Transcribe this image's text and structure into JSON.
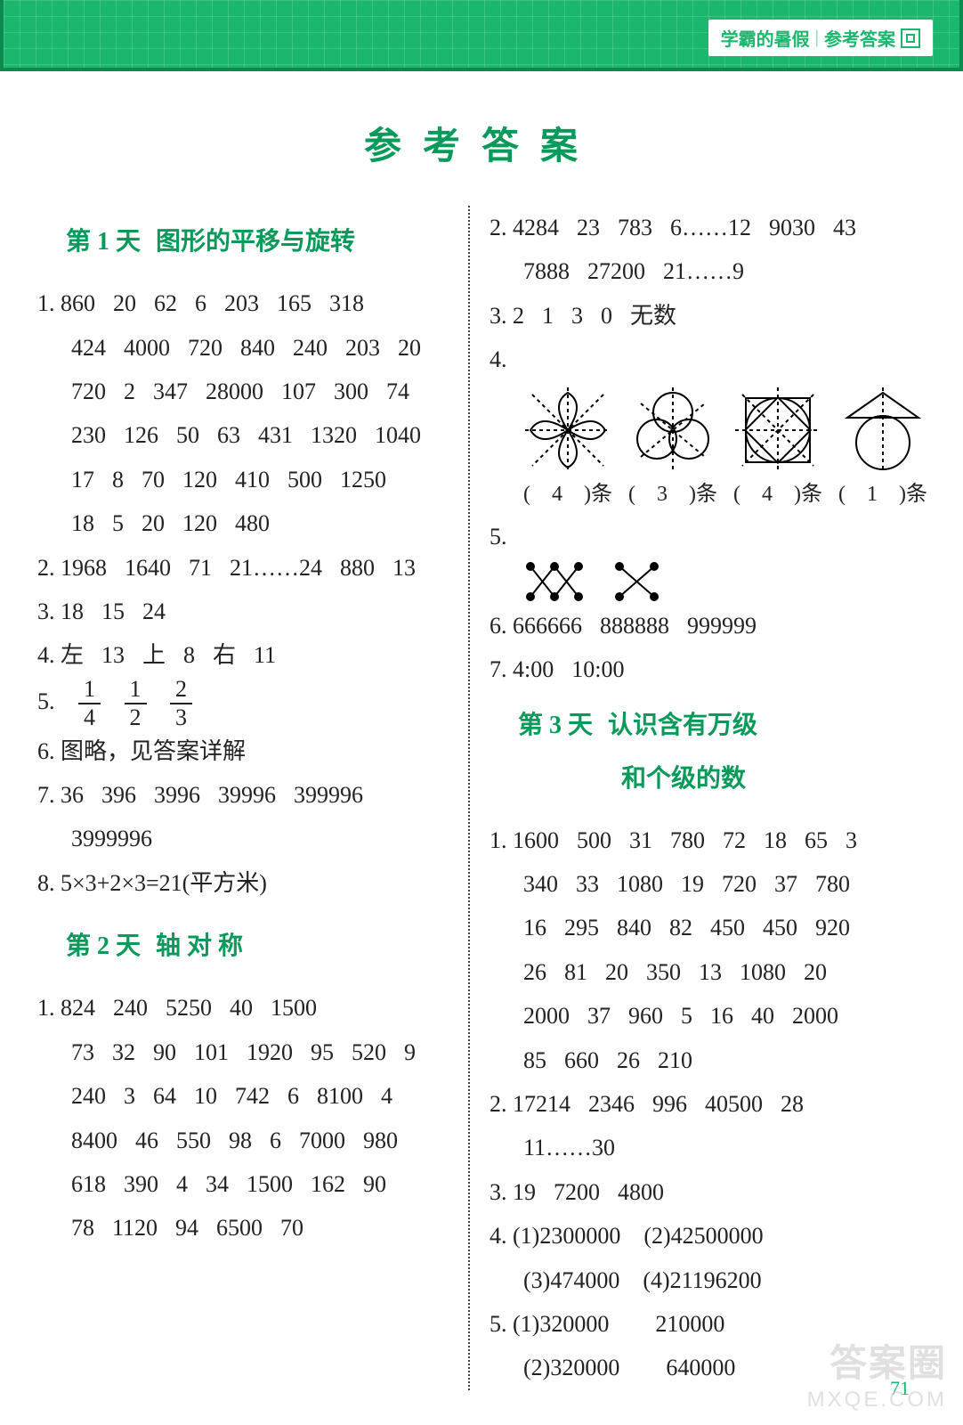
{
  "banner": {
    "left": "学霸的暑假",
    "right": "参考答案"
  },
  "page_title": "参考答案",
  "page_number": "71",
  "watermark": {
    "line1": "答案圈",
    "line2": "MXQE.COM"
  },
  "colors": {
    "brand": "#089a5a",
    "banner_bg": "#1bb76e",
    "banner_border": "#0a8a4f",
    "text": "#222222",
    "divider": "#444444"
  },
  "left": {
    "day1": {
      "num": "第 1 天",
      "title": "图形的平移与旋转"
    },
    "q1": {
      "r1": [
        "1. 860",
        "20",
        "62",
        "6",
        "203",
        "165",
        "318"
      ],
      "r2": [
        "424",
        "4000",
        "720",
        "840",
        "240",
        "203",
        "20"
      ],
      "r3": [
        "720",
        "2",
        "347",
        "28000",
        "107",
        "300",
        "74"
      ],
      "r4": [
        "230",
        "126",
        "50",
        "63",
        "431",
        "1320",
        "1040"
      ],
      "r5": [
        "17",
        "8",
        "70",
        "120",
        "410",
        "500",
        "1250"
      ],
      "r6": [
        "18",
        "5",
        "20",
        "120",
        "480"
      ]
    },
    "q2": [
      "2. 1968",
      "1640",
      "71",
      "21……24",
      "880",
      "13"
    ],
    "q3": [
      "3. 18",
      "15",
      "24"
    ],
    "q4": [
      "4. 左",
      "13",
      "上",
      "8",
      "右",
      "11"
    ],
    "q5_label": "5.",
    "q5": [
      {
        "t": "1",
        "b": "4"
      },
      {
        "t": "1",
        "b": "2"
      },
      {
        "t": "2",
        "b": "3"
      }
    ],
    "q6": "6. 图略，见答案详解",
    "q7": {
      "r1": [
        "7. 36",
        "396",
        "3996",
        "39996",
        "399996"
      ],
      "r2": [
        "3999996"
      ]
    },
    "q8": "8. 5×3+2×3=21(平方米)",
    "day2": {
      "num": "第 2 天",
      "title": "轴 对 称"
    },
    "d2q1": {
      "r1": [
        "1. 824",
        "240",
        "5250",
        "40",
        "1500"
      ],
      "r2": [
        "73",
        "32",
        "90",
        "101",
        "1920",
        "95",
        "520",
        "9"
      ],
      "r3": [
        "240",
        "3",
        "64",
        "10",
        "742",
        "6",
        "8100",
        "4"
      ],
      "r4": [
        "8400",
        "46",
        "550",
        "98",
        "6",
        "7000",
        "980"
      ],
      "r5": [
        "618",
        "390",
        "4",
        "34",
        "1500",
        "162",
        "90"
      ],
      "r6": [
        "78",
        "1120",
        "94",
        "6500",
        "70"
      ]
    }
  },
  "right": {
    "q2": {
      "r1": [
        "2. 4284",
        "23",
        "783",
        "6……12",
        "9030",
        "43"
      ],
      "r2": [
        "7888",
        "27200",
        "21……9"
      ]
    },
    "q3": [
      "3. 2",
      "1",
      "3",
      "0",
      "无数"
    ],
    "q4_label": "4.",
    "q4_caps": [
      "(　4　)条",
      "(　3　)条",
      "(　4　)条",
      "(　1　)条"
    ],
    "q5_label": "5.",
    "q6": [
      "6. 666666",
      "888888",
      "999999"
    ],
    "q7": [
      "7. 4:00",
      "10:00"
    ],
    "day3": {
      "num": "第 3 天",
      "title1": "认识含有万级",
      "title2": "和个级的数"
    },
    "d3q1": {
      "r1": [
        "1. 1600",
        "500",
        "31",
        "780",
        "72",
        "18",
        "65",
        "3"
      ],
      "r2": [
        "340",
        "33",
        "1080",
        "19",
        "720",
        "37",
        "780"
      ],
      "r3": [
        "16",
        "295",
        "840",
        "82",
        "450",
        "450",
        "920"
      ],
      "r4": [
        "26",
        "81",
        "20",
        "350",
        "13",
        "1080",
        "20"
      ],
      "r5": [
        "2000",
        "37",
        "960",
        "5",
        "16",
        "40",
        "2000"
      ],
      "r6": [
        "85",
        "660",
        "26",
        "210"
      ]
    },
    "d3q2": {
      "r1": [
        "2. 17214",
        "2346",
        "996",
        "40500",
        "28"
      ],
      "r2": [
        "11……30"
      ]
    },
    "d3q3": [
      "3. 19",
      "7200",
      "4800"
    ],
    "d3q4": {
      "r1": "4. (1)2300000　(2)42500000",
      "r2": "(3)474000　(4)21196200"
    },
    "d3q5": {
      "r1": "5. (1)320000　　210000",
      "r2": "(2)320000　　640000"
    }
  }
}
